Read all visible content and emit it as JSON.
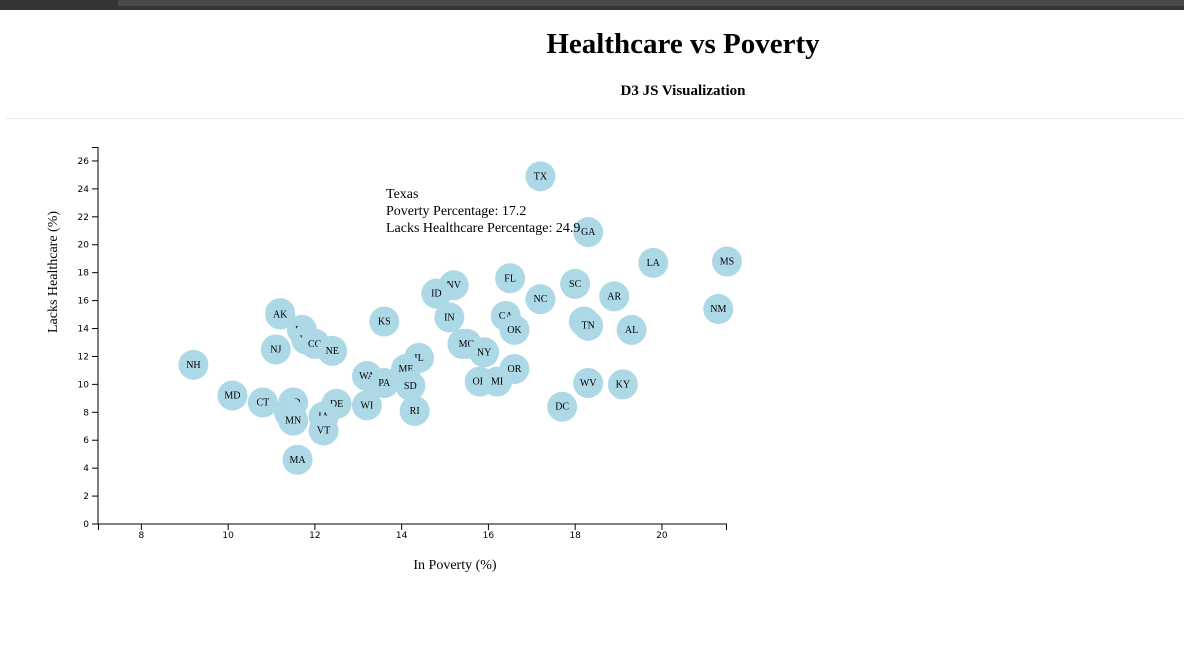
{
  "page": {
    "title": "Healthcare vs Poverty",
    "subtitle": "D3 JS Visualization"
  },
  "tooltip": {
    "state": "Texas",
    "line1": "Poverty Percentage: 17.2",
    "line2": "Lacks Healthcare Percentage: 24.9"
  },
  "colors": {
    "circle_fill": "#add8e6",
    "axis": "#000000",
    "topbar": "#353535"
  },
  "chart_data": {
    "type": "scatter",
    "xlabel": "In Poverty (%)",
    "ylabel": "Lacks Healthcare (%)",
    "xlim": [
      7,
      21.5
    ],
    "ylim": [
      0,
      27
    ],
    "xticks": [
      8,
      10,
      12,
      14,
      16,
      18,
      20
    ],
    "yticks": [
      0,
      2,
      4,
      6,
      8,
      10,
      12,
      14,
      16,
      18,
      20,
      22,
      24,
      26
    ],
    "grid": false,
    "points": [
      {
        "label": "TX",
        "x": 17.2,
        "y": 24.9
      },
      {
        "label": "GA",
        "x": 18.3,
        "y": 20.9
      },
      {
        "label": "LA",
        "x": 19.8,
        "y": 18.7
      },
      {
        "label": "MS",
        "x": 21.5,
        "y": 18.8
      },
      {
        "label": "NM",
        "x": 21.3,
        "y": 15.4
      },
      {
        "label": "FL",
        "x": 16.5,
        "y": 17.6
      },
      {
        "label": "NV",
        "x": 15.2,
        "y": 17.1
      },
      {
        "label": "SC",
        "x": 18.0,
        "y": 17.2
      },
      {
        "label": "AR",
        "x": 18.9,
        "y": 16.3
      },
      {
        "label": "ID",
        "x": 14.8,
        "y": 16.5
      },
      {
        "label": "NC",
        "x": 17.2,
        "y": 16.1
      },
      {
        "label": "WY",
        "x": 11.2,
        "y": 15.1
      },
      {
        "label": "AK",
        "x": 11.2,
        "y": 15.0
      },
      {
        "label": "CA",
        "x": 16.4,
        "y": 14.9
      },
      {
        "label": "IN",
        "x": 15.1,
        "y": 14.8
      },
      {
        "label": "KS",
        "x": 13.6,
        "y": 14.5
      },
      {
        "label": "AZ",
        "x": 18.2,
        "y": 14.5
      },
      {
        "label": "TN",
        "x": 18.3,
        "y": 14.2
      },
      {
        "label": "UT",
        "x": 11.7,
        "y": 13.9
      },
      {
        "label": "OK",
        "x": 16.6,
        "y": 13.9
      },
      {
        "label": "AL",
        "x": 19.3,
        "y": 13.9
      },
      {
        "label": "VA",
        "x": 11.8,
        "y": 13.2
      },
      {
        "label": "CO",
        "x": 12.0,
        "y": 12.9
      },
      {
        "label": "NJ",
        "x": 11.1,
        "y": 12.5
      },
      {
        "label": "NE",
        "x": 12.4,
        "y": 12.4
      },
      {
        "label": "MT",
        "x": 15.4,
        "y": 12.9
      },
      {
        "label": "MO",
        "x": 15.5,
        "y": 12.9
      },
      {
        "label": "NY",
        "x": 15.9,
        "y": 12.3
      },
      {
        "label": "IL",
        "x": 14.4,
        "y": 11.9
      },
      {
        "label": "NH",
        "x": 9.2,
        "y": 11.4
      },
      {
        "label": "ME",
        "x": 14.1,
        "y": 11.1
      },
      {
        "label": "OR",
        "x": 16.6,
        "y": 11.1
      },
      {
        "label": "WA",
        "x": 13.2,
        "y": 10.6
      },
      {
        "label": "PA",
        "x": 13.6,
        "y": 10.1
      },
      {
        "label": "SD",
        "x": 14.2,
        "y": 9.9
      },
      {
        "label": "OH",
        "x": 15.8,
        "y": 10.2
      },
      {
        "label": "MI",
        "x": 16.2,
        "y": 10.2
      },
      {
        "label": "WV",
        "x": 18.3,
        "y": 10.1
      },
      {
        "label": "KY",
        "x": 19.1,
        "y": 10.0
      },
      {
        "label": "MD",
        "x": 10.1,
        "y": 9.2
      },
      {
        "label": "CT",
        "x": 10.8,
        "y": 8.7
      },
      {
        "label": "ND",
        "x": 11.5,
        "y": 8.7
      },
      {
        "label": "DE",
        "x": 12.5,
        "y": 8.6
      },
      {
        "label": "WI",
        "x": 13.2,
        "y": 8.5
      },
      {
        "label": "HI",
        "x": 11.4,
        "y": 8.0
      },
      {
        "label": "DC",
        "x": 17.7,
        "y": 8.4
      },
      {
        "label": "RI",
        "x": 14.3,
        "y": 8.1
      },
      {
        "label": "IA",
        "x": 12.2,
        "y": 7.7
      },
      {
        "label": "MN",
        "x": 11.5,
        "y": 7.4
      },
      {
        "label": "VT",
        "x": 12.2,
        "y": 6.7
      },
      {
        "label": "MA",
        "x": 11.6,
        "y": 4.6
      }
    ]
  }
}
